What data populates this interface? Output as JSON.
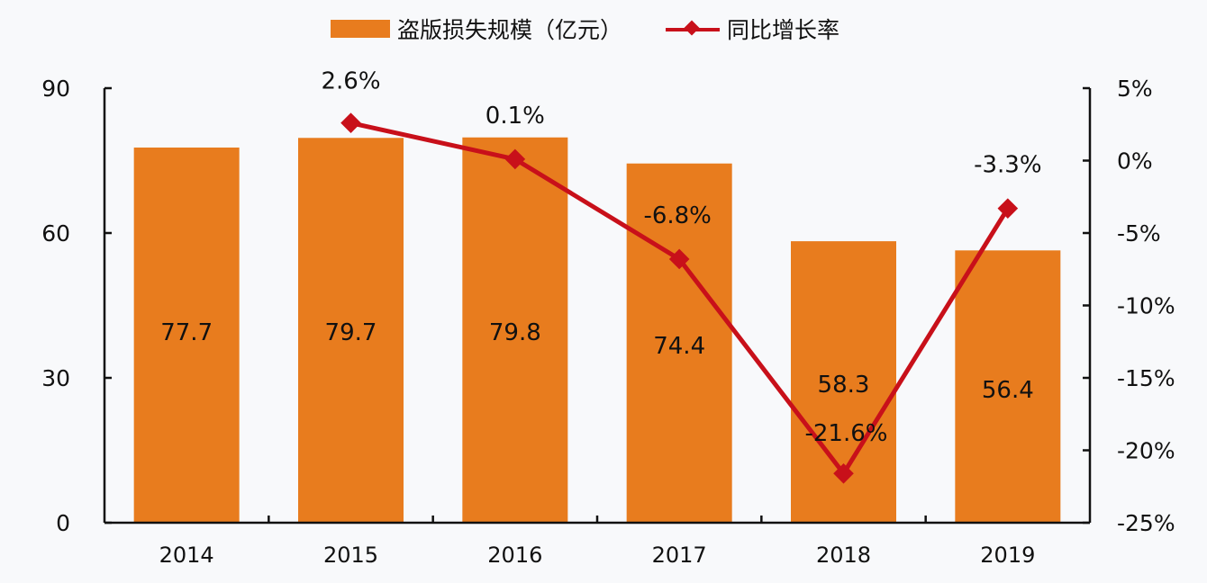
{
  "chart_data": {
    "type": "bar+line",
    "title": "",
    "categories": [
      "2014",
      "2015",
      "2016",
      "2017",
      "2018",
      "2019"
    ],
    "series": [
      {
        "name": "盗版损失规模（亿元）",
        "type": "bar",
        "axis": "left",
        "color": "#e87c1e",
        "values": [
          77.7,
          79.7,
          79.8,
          74.4,
          58.3,
          56.4
        ],
        "labels": [
          "77.7",
          "79.7",
          "79.8",
          "74.4",
          "58.3",
          "56.4"
        ]
      },
      {
        "name": "同比增长率",
        "type": "line",
        "axis": "right",
        "color": "#c8101a",
        "marker": "diamond",
        "values": [
          null,
          2.6,
          0.1,
          -6.8,
          -21.6,
          -3.3
        ],
        "labels": [
          null,
          "2.6%",
          "0.1%",
          "-6.8%",
          "-21.6%",
          "-3.3%"
        ]
      }
    ],
    "left_axis": {
      "ylim": [
        0,
        90
      ],
      "ticks": [
        "0",
        "30",
        "60",
        "90"
      ]
    },
    "right_axis": {
      "ylim": [
        -25,
        5
      ],
      "ticks": [
        "5%",
        "0%",
        "-5%",
        "-10%",
        "-15%",
        "-20%",
        "-25%"
      ]
    },
    "legend_position": "top",
    "grid": false
  },
  "legend": {
    "bar_label": "盗版损失规模（亿元）",
    "line_label": "同比增长率"
  }
}
